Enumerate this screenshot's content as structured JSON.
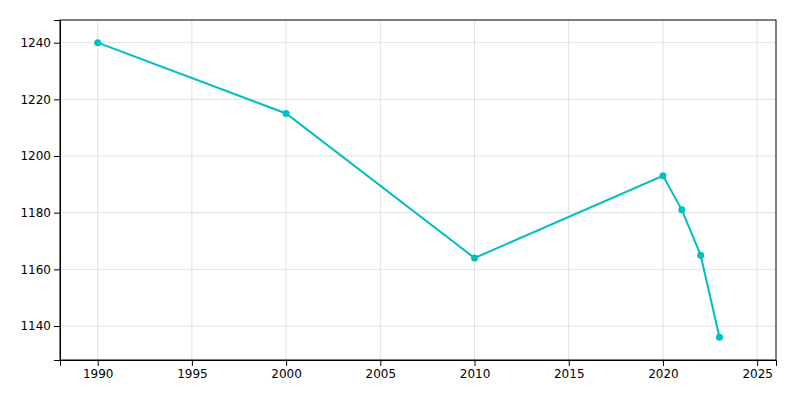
{
  "chart_data": {
    "type": "line",
    "x": [
      1990,
      2000,
      2010,
      2020,
      2021,
      2022,
      2023
    ],
    "values": [
      1240,
      1215,
      1164,
      1193,
      1181,
      1165,
      1136
    ],
    "color": "#00BFBF",
    "marker": "circle",
    "grid": true,
    "xlim": [
      1988,
      2026
    ],
    "ylim": [
      1128,
      1248
    ],
    "xticks": [
      1990,
      1995,
      2000,
      2005,
      2010,
      2015,
      2020,
      2025
    ],
    "yticks": [
      1140,
      1160,
      1180,
      1200,
      1220,
      1240
    ]
  }
}
